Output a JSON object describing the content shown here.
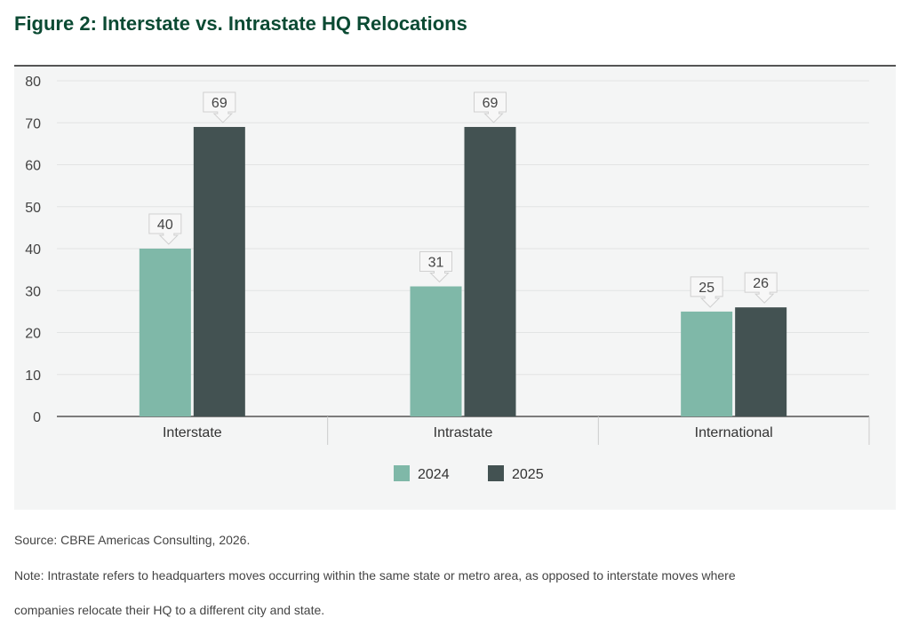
{
  "title": "Figure 2: Interstate vs. Intrastate HQ Relocations",
  "source": "Source: CBRE Americas Consulting, 2026.",
  "note_line1": "Note: Intrastate refers to headquarters moves occurring within the same state or metro area, as opposed to interstate moves where",
  "note_line2": "companies relocate their HQ to a different city and state.",
  "chart_data": {
    "type": "bar",
    "categories": [
      "Interstate",
      "Intrastate",
      "International"
    ],
    "series": [
      {
        "name": "2024",
        "values": [
          40,
          31,
          25
        ],
        "color": "#7fb8a8"
      },
      {
        "name": "2025",
        "values": [
          69,
          69,
          26
        ],
        "color": "#435252"
      }
    ],
    "ylim": [
      0,
      80
    ],
    "yticks": [
      0,
      10,
      20,
      30,
      40,
      50,
      60,
      70,
      80
    ],
    "grid": true,
    "legend": "bottom",
    "data_labels": true
  }
}
